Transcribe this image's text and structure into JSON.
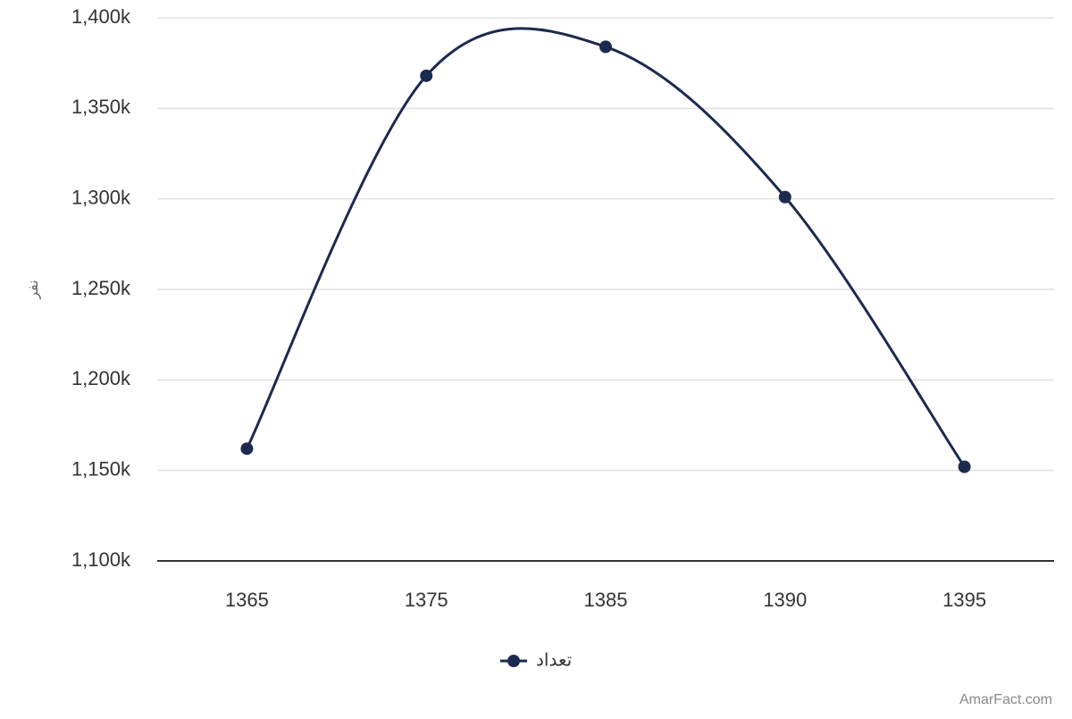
{
  "chart_data": {
    "type": "line",
    "y_label": "نفر",
    "categories": [
      "1365",
      "1375",
      "1385",
      "1390",
      "1395"
    ],
    "series": [
      {
        "name": "تعداد",
        "color": "#1c2a4f",
        "values": [
          1162,
          1368,
          1384,
          1301,
          1152
        ]
      }
    ],
    "ylim": [
      1100,
      1400
    ],
    "yticks": [
      {
        "value": 1100,
        "label": "1,100k"
      },
      {
        "value": 1150,
        "label": "1,150k"
      },
      {
        "value": 1200,
        "label": "1,200k"
      },
      {
        "value": 1250,
        "label": "1,250k"
      },
      {
        "value": 1300,
        "label": "1,300k"
      },
      {
        "value": 1350,
        "label": "1,350k"
      },
      {
        "value": 1400,
        "label": "1,400k"
      }
    ],
    "grid": true,
    "legend": "bottom",
    "watermark": "AmarFact.com"
  }
}
